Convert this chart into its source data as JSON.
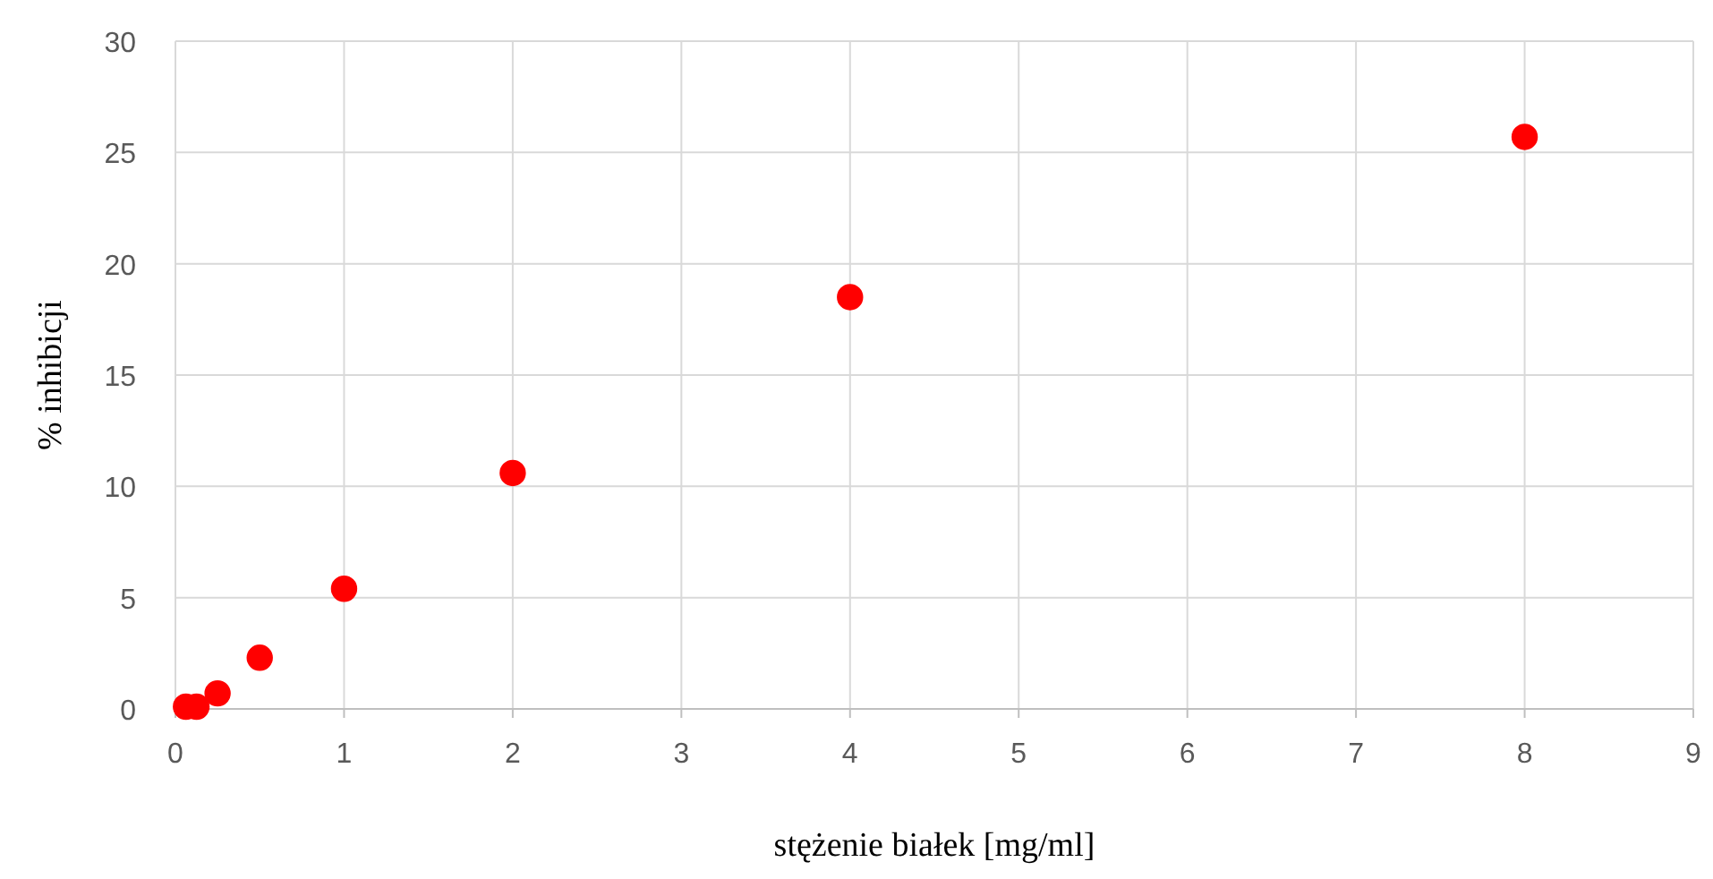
{
  "chart_data": {
    "type": "scatter",
    "xlabel": "stężenie białek [mg/ml]",
    "ylabel": "% inhibicji",
    "x": [
      0.0625,
      0.125,
      0.25,
      0.5,
      1,
      2,
      4,
      8
    ],
    "series": [
      {
        "color": "#ff0000",
        "values": [
          0.1,
          0.1,
          0.7,
          2.3,
          5.4,
          10.6,
          18.5,
          25.7
        ]
      }
    ],
    "xlim": [
      0,
      9
    ],
    "xticks": [
      0,
      1,
      2,
      3,
      4,
      5,
      6,
      7,
      8,
      9
    ],
    "ylim": [
      0,
      30
    ],
    "yticks": [
      0,
      5,
      10,
      15,
      20,
      25,
      30
    ],
    "grid": true,
    "marker": "circle"
  }
}
